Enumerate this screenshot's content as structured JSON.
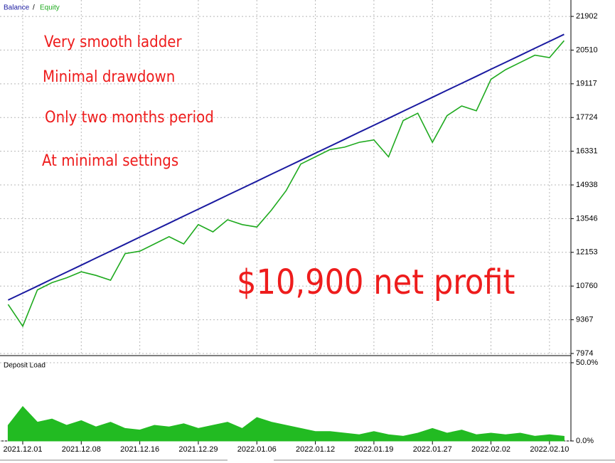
{
  "chart_data": [
    {
      "type": "line",
      "legend_separator": "/",
      "annotations": [
        "Very smooth ladder",
        "Minimal drawdown",
        "Only two months period",
        "At minimal settings",
        "$10,900 net profit"
      ],
      "series": [
        {
          "name": "Balance",
          "color": "#1a1aa0",
          "values": [
            10180,
            10469,
            10758,
            11047,
            11336,
            11625,
            11914,
            12203,
            12492,
            12781,
            13070,
            13359,
            13648,
            13937,
            14226,
            14515,
            14804,
            15093,
            15382,
            15671,
            15960,
            16249,
            16538,
            16827,
            17116,
            17405,
            17694,
            17983,
            18272,
            18561,
            18850,
            19139,
            19428,
            19717,
            20006,
            20295,
            20584,
            20873,
            21162
          ]
        },
        {
          "name": "Equity",
          "color": "#1faa1f",
          "values": [
            10000,
            9100,
            10600,
            10900,
            11100,
            11350,
            11200,
            11000,
            12100,
            12200,
            12500,
            12800,
            12500,
            13300,
            13000,
            13500,
            13300,
            13200,
            13900,
            14700,
            15800,
            16100,
            16400,
            16500,
            16700,
            16800,
            16100,
            17600,
            17900,
            16700,
            17800,
            18200,
            18000,
            19300,
            19700,
            20000,
            20300,
            20200,
            20900
          ]
        }
      ],
      "ylim": [
        7974,
        22580
      ],
      "yticks": [
        7974,
        9367,
        10760,
        12153,
        13546,
        14938,
        16331,
        17724,
        19117,
        20510,
        21902
      ],
      "grid": true
    },
    {
      "type": "area",
      "title": "Deposit Load",
      "color": "#22bb22",
      "categories": [
        null,
        "2021.12.01",
        null,
        null,
        null,
        "2021.12.08",
        null,
        null,
        null,
        "2021.12.16",
        null,
        null,
        null,
        "2021.12.29",
        null,
        null,
        null,
        "2022.01.06",
        null,
        null,
        null,
        "2022.01.12",
        null,
        null,
        null,
        "2022.01.19",
        null,
        null,
        null,
        "2022.01.27",
        null,
        null,
        null,
        "2022.02.02",
        null,
        null,
        null,
        "2022.02.10",
        null
      ],
      "values": [
        10,
        22,
        12,
        14,
        10,
        13,
        9,
        12,
        8,
        7,
        10,
        9,
        11,
        8,
        10,
        12,
        8,
        15,
        12,
        10,
        8,
        6,
        6,
        5,
        4,
        6,
        4,
        3,
        5,
        8,
        5,
        7,
        4,
        5,
        4,
        5,
        3,
        4,
        3
      ],
      "ylim": [
        0,
        50
      ],
      "yticks": [
        {
          "value": 0,
          "label": "0.0%"
        },
        {
          "value": 50,
          "label": "50.0%"
        }
      ],
      "grid": true
    }
  ]
}
